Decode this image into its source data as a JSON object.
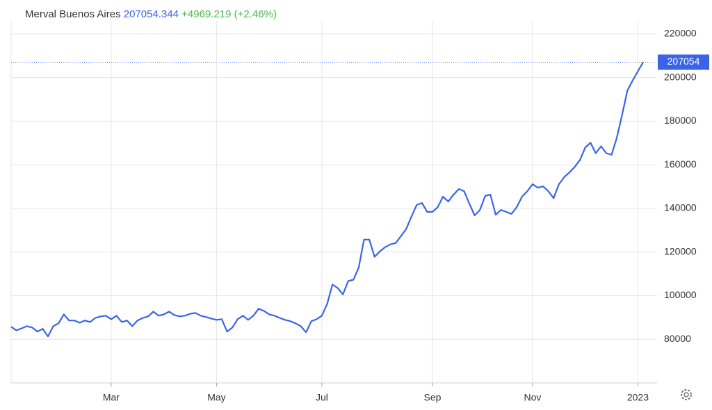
{
  "chart_data": {
    "type": "line",
    "title": "Merval Buenos Aires",
    "price": "207054.344",
    "change": "+4969.219 (+2.46%)",
    "last_value_label": "207054",
    "categories": [
      null,
      null,
      null,
      null,
      null,
      null,
      null,
      null,
      null,
      null,
      null,
      null,
      null,
      null,
      null,
      null,
      null,
      null,
      null,
      "Mar",
      null,
      null,
      null,
      null,
      null,
      null,
      null,
      null,
      null,
      null,
      null,
      null,
      null,
      null,
      null,
      null,
      null,
      null,
      null,
      "May",
      null,
      null,
      null,
      null,
      null,
      null,
      null,
      null,
      null,
      null,
      null,
      null,
      null,
      null,
      null,
      null,
      null,
      null,
      null,
      "Jul",
      null,
      null,
      null,
      null,
      null,
      null,
      null,
      null,
      null,
      null,
      null,
      null,
      null,
      null,
      null,
      null,
      null,
      null,
      null,
      null,
      "Sep",
      null,
      null,
      null,
      null,
      null,
      null,
      null,
      null,
      null,
      null,
      null,
      null,
      null,
      null,
      null,
      null,
      null,
      null,
      "Nov",
      null,
      null,
      null,
      null,
      null,
      null,
      null,
      null,
      null,
      null,
      null,
      null,
      null,
      null,
      null,
      null,
      null,
      null,
      null,
      "2023",
      null
    ],
    "series": [
      {
        "name": "Merval Buenos Aires",
        "color": "#3b63e8",
        "values": [
          85700,
          84100,
          85000,
          86000,
          85400,
          83500,
          84800,
          81300,
          86000,
          87300,
          91400,
          88600,
          88600,
          87600,
          88600,
          87900,
          89800,
          90500,
          90800,
          89200,
          90800,
          87900,
          88600,
          86000,
          88600,
          89800,
          90500,
          92700,
          90800,
          91400,
          92700,
          91100,
          90500,
          90800,
          91700,
          92100,
          90800,
          90200,
          89500,
          88900,
          89200,
          83500,
          85400,
          89200,
          90800,
          88900,
          90800,
          94000,
          93000,
          91400,
          90800,
          89800,
          88900,
          88300,
          87300,
          86000,
          83200,
          88300,
          89200,
          90800,
          96200,
          105100,
          103500,
          100600,
          106700,
          107300,
          113000,
          125700,
          125700,
          117800,
          120300,
          122200,
          123500,
          124100,
          127300,
          130500,
          136200,
          141600,
          142500,
          138400,
          138400,
          140600,
          145400,
          143200,
          146300,
          148900,
          147900,
          142200,
          136800,
          139300,
          145700,
          146300,
          137100,
          139300,
          138400,
          137500,
          140600,
          145400,
          147900,
          151100,
          149500,
          150100,
          147900,
          144700,
          151100,
          154300,
          156500,
          159000,
          162200,
          167900,
          170100,
          165300,
          168500,
          165300,
          164600,
          172400,
          182900,
          194000,
          198700,
          202900,
          207054
        ]
      }
    ],
    "ylim": [
      60000,
      226000
    ],
    "yticks": [
      80000,
      100000,
      120000,
      140000,
      160000,
      180000,
      200000,
      220000
    ],
    "grid": true
  }
}
